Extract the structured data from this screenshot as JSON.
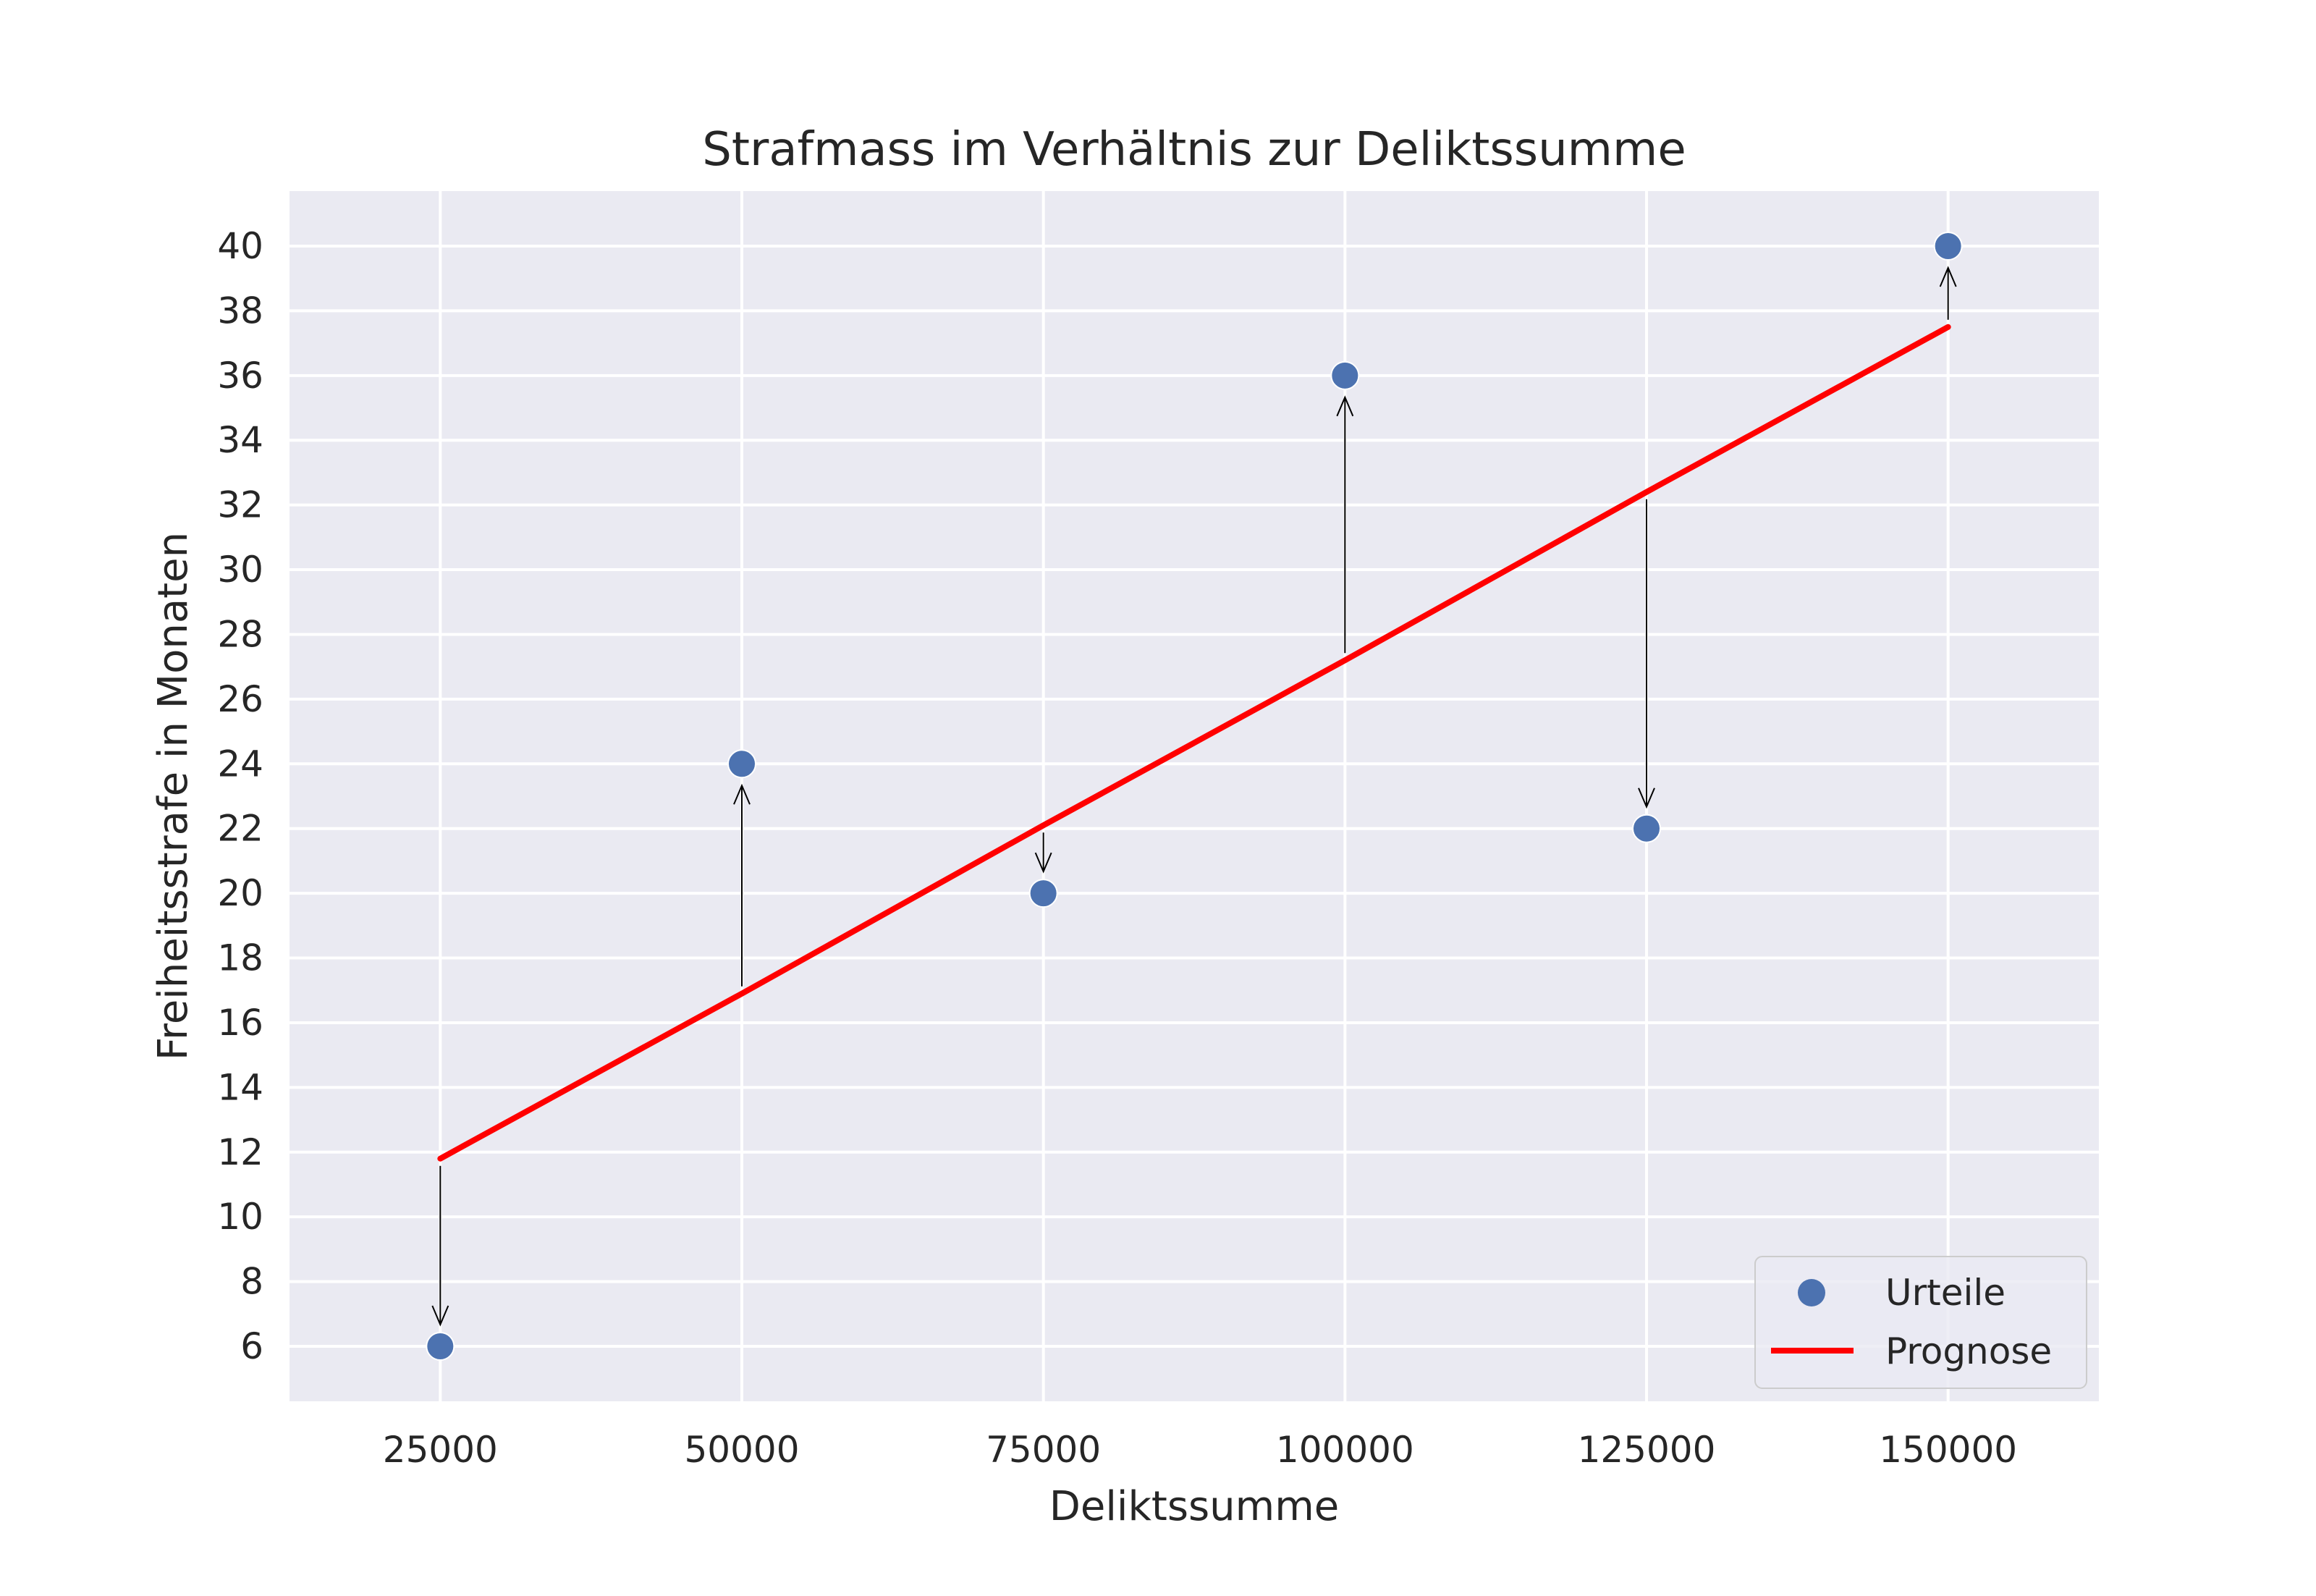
{
  "chart_data": {
    "type": "scatter",
    "title": "Strafmass im Verhältnis zur Deliktssumme",
    "xlabel": "Deliktssumme",
    "ylabel": "Freiheitsstrafe in Monaten",
    "xlim": [
      12500,
      162500
    ],
    "ylim": [
      4.3,
      41.7
    ],
    "x_ticks": [
      25000,
      50000,
      75000,
      100000,
      125000,
      150000
    ],
    "y_ticks": [
      6,
      8,
      10,
      12,
      14,
      16,
      18,
      20,
      22,
      24,
      26,
      28,
      30,
      32,
      34,
      36,
      38,
      40
    ],
    "grid": true,
    "legend_position": "lower-right",
    "series": [
      {
        "name": "Urteile",
        "kind": "scatter",
        "color": "#4c72b0",
        "x": [
          25000,
          50000,
          75000,
          100000,
          125000,
          150000
        ],
        "y": [
          6,
          24,
          20,
          36,
          22,
          40
        ]
      },
      {
        "name": "Prognose",
        "kind": "line",
        "color": "#ff0000",
        "x": [
          25000,
          50000,
          75000,
          100000,
          125000,
          150000
        ],
        "y": [
          11.8,
          16.9,
          22.1,
          27.2,
          32.4,
          37.5
        ]
      }
    ],
    "residual_arrows": {
      "color": "#000000",
      "from": "Prognose",
      "to": "Urteile"
    },
    "colors": {
      "plot_background": "#eaeaf2",
      "grid": "#ffffff"
    }
  }
}
